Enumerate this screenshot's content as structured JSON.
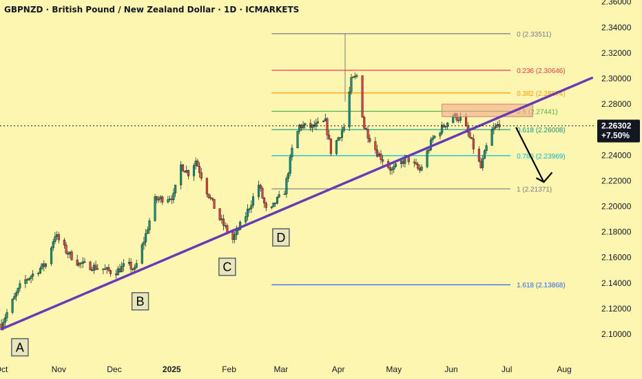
{
  "header": {
    "title": "GBPNZD · British Pound / New Zealand Dollar · 1D · ICMARKETS"
  },
  "chart_data": {
    "type": "candlestick",
    "symbol": "GBPNZD",
    "instrument": "British Pound / New Zealand Dollar",
    "timeframe": "1D",
    "source": "ICMARKETS",
    "ylim": [
      2.09,
      2.365
    ],
    "y_ticks": [
      "2.10000",
      "2.12000",
      "2.14000",
      "2.16000",
      "2.18000",
      "2.20000",
      "2.22000",
      "2.24000",
      "2.26000",
      "2.28000",
      "2.30000",
      "2.32000",
      "2.34000",
      "2.36000"
    ],
    "x_ticks": [
      {
        "label": "Oct",
        "date": "2024-10-01"
      },
      {
        "label": "Nov",
        "date": "2024-11-01"
      },
      {
        "label": "Dec",
        "date": "2024-12-01"
      },
      {
        "label": "2025",
        "date": "2025-01-01",
        "bold": true
      },
      {
        "label": "Feb",
        "date": "2025-02-01"
      },
      {
        "label": "Mar",
        "date": "2025-03-01"
      },
      {
        "label": "Apr",
        "date": "2025-04-01"
      },
      {
        "label": "May",
        "date": "2025-05-01"
      },
      {
        "label": "Jun",
        "date": "2025-06-01"
      },
      {
        "label": "Jul",
        "date": "2025-07-01"
      },
      {
        "label": "Aug",
        "date": "2025-08-01"
      }
    ],
    "price_path": [
      [
        "2024-10-01",
        2.108
      ],
      [
        "2024-10-12",
        2.14
      ],
      [
        "2024-10-25",
        2.155
      ],
      [
        "2024-10-30",
        2.178
      ],
      [
        "2024-11-05",
        2.165
      ],
      [
        "2024-11-12",
        2.155
      ],
      [
        "2024-11-22",
        2.152
      ],
      [
        "2024-12-01",
        2.148
      ],
      [
        "2024-12-08",
        2.155
      ],
      [
        "2024-12-12",
        2.15
      ],
      [
        "2024-12-18",
        2.178
      ],
      [
        "2024-12-23",
        2.205
      ],
      [
        "2025-01-02",
        2.208
      ],
      [
        "2025-01-06",
        2.232
      ],
      [
        "2025-01-10",
        2.226
      ],
      [
        "2025-01-14",
        2.236
      ],
      [
        "2025-01-20",
        2.212
      ],
      [
        "2025-01-27",
        2.19
      ],
      [
        "2025-02-03",
        2.174
      ],
      [
        "2025-02-10",
        2.193
      ],
      [
        "2025-02-17",
        2.217
      ],
      [
        "2025-02-22",
        2.192
      ],
      [
        "2025-02-26",
        2.203
      ],
      [
        "2025-03-03",
        2.212
      ],
      [
        "2025-03-07",
        2.244
      ],
      [
        "2025-03-11",
        2.263
      ],
      [
        "2025-03-18",
        2.262
      ],
      [
        "2025-03-25",
        2.266
      ],
      [
        "2025-03-28",
        2.243
      ],
      [
        "2025-04-04",
        2.262
      ],
      [
        "2025-04-08",
        2.298
      ],
      [
        "2025-04-11",
        2.302
      ],
      [
        "2025-04-15",
        2.262
      ],
      [
        "2025-04-22",
        2.242
      ],
      [
        "2025-04-30",
        2.228
      ],
      [
        "2025-05-08",
        2.238
      ],
      [
        "2025-05-15",
        2.228
      ],
      [
        "2025-05-22",
        2.253
      ],
      [
        "2025-05-28",
        2.263
      ],
      [
        "2025-06-02",
        2.271
      ],
      [
        "2025-06-07",
        2.268
      ],
      [
        "2025-06-12",
        2.25
      ],
      [
        "2025-06-17",
        2.23
      ],
      [
        "2025-06-22",
        2.257
      ],
      [
        "2025-06-27",
        2.265
      ]
    ],
    "current_price": {
      "value": "2.26302",
      "change": "+7.50%"
    },
    "fibonacci": [
      {
        "level": "0",
        "price": 2.33511,
        "label": "0 (2.33511)",
        "color": "#787b86"
      },
      {
        "level": "0.236",
        "price": 2.30646,
        "label": "0.236 (2.30646)",
        "color": "#f23645"
      },
      {
        "level": "0.382",
        "price": 2.28874,
        "label": "0.382 (2.28874)",
        "color": "#ff9800"
      },
      {
        "level": "0.5",
        "price": 2.27441,
        "label": "0.5 (2.27441)",
        "color": "#4caf50"
      },
      {
        "level": "0.618",
        "price": 2.26008,
        "label": "0.618 (2.26008)",
        "color": "#089981"
      },
      {
        "level": "0.786",
        "price": 2.23969,
        "label": "0.786 (2.23969)",
        "color": "#00bcd4"
      },
      {
        "level": "1",
        "price": 2.21371,
        "label": "1 (2.21371)",
        "color": "#787b86"
      },
      {
        "level": "1.618",
        "price": 2.13868,
        "label": "1.618 (2.13868)",
        "color": "#2962ff"
      }
    ],
    "fib_range": {
      "start": "2025-02-24",
      "end": "2025-07-03"
    },
    "trendline": {
      "start": [
        "2024-10-01",
        2.104
      ],
      "end": [
        "2025-08-16",
        2.3005
      ],
      "color": "#673ab7"
    },
    "resistance_zone": {
      "start": "2025-05-27",
      "end": "2025-07-15",
      "low": 2.2702,
      "high": 2.28,
      "color": "#f7a48a"
    },
    "arrow": {
      "start": [
        "2025-07-06",
        2.2618
      ],
      "end": [
        "2025-07-21",
        2.219
      ]
    },
    "points": [
      {
        "label": "A",
        "date": "2024-10-11",
        "price": 2.1035
      },
      {
        "label": "B",
        "date": "2024-12-15",
        "price": 2.1395
      },
      {
        "label": "C",
        "date": "2025-01-31",
        "price": 2.1665
      },
      {
        "label": "D",
        "date": "2025-03-01",
        "price": 2.1895
      }
    ],
    "colors": {
      "up": "#089981",
      "down": "#f23645",
      "background": "#fdf6b0"
    }
  }
}
